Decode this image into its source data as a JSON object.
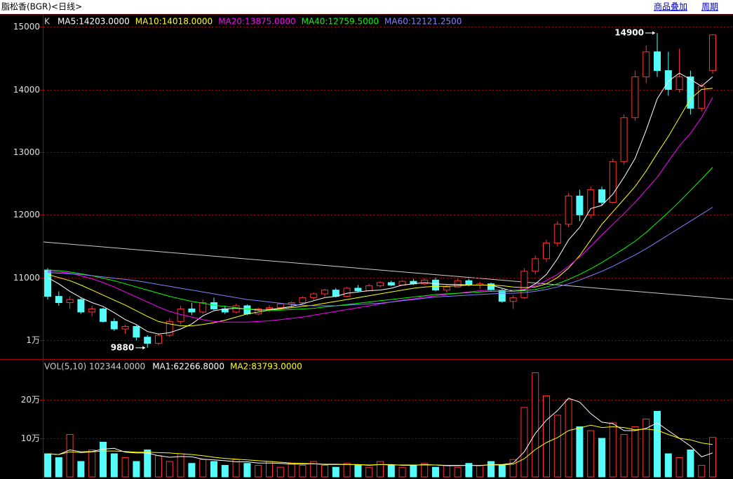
{
  "chart_data": {
    "type": "candlestick",
    "title": "脂松香(BGR)<日线>",
    "buttons": [
      "商品叠加",
      "周期"
    ],
    "price_label": "K",
    "up_color": "#ff3232",
    "down_color": "#54fcfc",
    "ylim": [
      9700,
      15180
    ],
    "yticks": [
      {
        "value": 10000,
        "label": "1万"
      },
      11000,
      12000,
      13000,
      14000,
      15000
    ],
    "grid": true,
    "ohlc": [
      [
        11120,
        11150,
        10650,
        10700
      ],
      [
        10700,
        10780,
        10550,
        10600
      ],
      [
        10600,
        10700,
        10500,
        10650
      ],
      [
        10650,
        10680,
        10420,
        10450
      ],
      [
        10450,
        10550,
        10380,
        10500
      ],
      [
        10500,
        10520,
        10280,
        10300
      ],
      [
        10300,
        10350,
        10150,
        10180
      ],
      [
        10180,
        10250,
        10100,
        10220
      ],
      [
        10220,
        10240,
        10000,
        10050
      ],
      [
        10050,
        10080,
        9880,
        9950
      ],
      [
        9950,
        10100,
        9920,
        10080
      ],
      [
        10080,
        10350,
        10050,
        10300
      ],
      [
        10300,
        10550,
        10250,
        10500
      ],
      [
        10500,
        10600,
        10400,
        10450
      ],
      [
        10450,
        10650,
        10420,
        10600
      ],
      [
        10600,
        10680,
        10480,
        10500
      ],
      [
        10500,
        10550,
        10420,
        10450
      ],
      [
        10450,
        10580,
        10430,
        10550
      ],
      [
        10550,
        10570,
        10400,
        10420
      ],
      [
        10420,
        10520,
        10400,
        10500
      ],
      [
        10500,
        10560,
        10450,
        10520
      ],
      [
        10520,
        10600,
        10480,
        10580
      ],
      [
        10580,
        10620,
        10520,
        10600
      ],
      [
        10600,
        10700,
        10580,
        10680
      ],
      [
        10680,
        10760,
        10640,
        10740
      ],
      [
        10740,
        10820,
        10700,
        10800
      ],
      [
        10800,
        10830,
        10680,
        10700
      ],
      [
        10700,
        10850,
        10690,
        10830
      ],
      [
        10830,
        10880,
        10760,
        10790
      ],
      [
        10790,
        10900,
        10780,
        10870
      ],
      [
        10870,
        10940,
        10840,
        10920
      ],
      [
        10920,
        10950,
        10860,
        10880
      ],
      [
        10880,
        10960,
        10870,
        10940
      ],
      [
        10940,
        10980,
        10880,
        10900
      ],
      [
        10900,
        10990,
        10880,
        10960
      ],
      [
        10960,
        11000,
        10780,
        10800
      ],
      [
        10800,
        10880,
        10760,
        10850
      ],
      [
        10850,
        10980,
        10840,
        10950
      ],
      [
        10950,
        10980,
        10860,
        10880
      ],
      [
        10880,
        10930,
        10820,
        10900
      ],
      [
        10900,
        10920,
        10780,
        10800
      ],
      [
        10800,
        10820,
        10600,
        10620
      ],
      [
        10620,
        10720,
        10500,
        10680
      ],
      [
        10680,
        11150,
        10660,
        11100
      ],
      [
        11100,
        11350,
        11050,
        11300
      ],
      [
        11300,
        11600,
        11250,
        11550
      ],
      [
        11550,
        11900,
        11500,
        11850
      ],
      [
        11850,
        12350,
        11800,
        12300
      ],
      [
        12300,
        12400,
        11900,
        12000
      ],
      [
        12000,
        12450,
        11950,
        12400
      ],
      [
        12400,
        12450,
        12150,
        12200
      ],
      [
        12200,
        12900,
        12180,
        12850
      ],
      [
        12850,
        13600,
        12800,
        13550
      ],
      [
        13550,
        14300,
        13500,
        14200
      ],
      [
        14200,
        14700,
        14100,
        14600
      ],
      [
        14600,
        14900,
        14200,
        14300
      ],
      [
        14300,
        14600,
        13900,
        14000
      ],
      [
        14000,
        14650,
        13950,
        14200
      ],
      [
        14200,
        14300,
        13600,
        13700
      ],
      [
        13700,
        14100,
        13650,
        14050
      ],
      [
        14300,
        14880,
        14250,
        14870
      ]
    ],
    "series": [
      {
        "name": "MA5:14203.0000",
        "color": "#ffffff",
        "values": [
          11000,
          10900,
          10780,
          10680,
          10600,
          10540,
          10440,
          10330,
          10250,
          10140,
          10100,
          10120,
          10180,
          10260,
          10390,
          10470,
          10500,
          10510,
          10500,
          10480,
          10490,
          10510,
          10540,
          10580,
          10630,
          10680,
          10700,
          10750,
          10770,
          10790,
          10800,
          10830,
          10880,
          10900,
          10920,
          10900,
          10890,
          10890,
          10880,
          10880,
          10880,
          10830,
          10780,
          10800,
          10900,
          11050,
          11300,
          11600,
          11800,
          12100,
          12150,
          12330,
          12600,
          12900,
          13350,
          13850,
          14130,
          14260,
          14160,
          14050,
          14203
        ]
      },
      {
        "name": "MA10:14018.0000",
        "color": "#ffff00",
        "values": [
          11050,
          11000,
          10950,
          10880,
          10800,
          10720,
          10640,
          10560,
          10470,
          10380,
          10300,
          10260,
          10230,
          10230,
          10250,
          10280,
          10320,
          10370,
          10420,
          10450,
          10480,
          10500,
          10520,
          10540,
          10560,
          10590,
          10620,
          10650,
          10680,
          10710,
          10740,
          10770,
          10800,
          10830,
          10850,
          10860,
          10860,
          10870,
          10880,
          10880,
          10880,
          10870,
          10850,
          10840,
          10850,
          10900,
          11000,
          11150,
          11350,
          11600,
          11850,
          12050,
          12250,
          12450,
          12700,
          12980,
          13250,
          13550,
          13850,
          14000,
          14018
        ]
      },
      {
        "name": "MA20:13875.0000",
        "color": "#ff00ff",
        "values": [
          11100,
          11090,
          11070,
          11030,
          10980,
          10920,
          10850,
          10770,
          10690,
          10610,
          10530,
          10460,
          10410,
          10370,
          10330,
          10300,
          10290,
          10290,
          10290,
          10300,
          10310,
          10330,
          10350,
          10370,
          10400,
          10430,
          10460,
          10490,
          10520,
          10550,
          10580,
          10610,
          10640,
          10660,
          10690,
          10710,
          10730,
          10750,
          10770,
          10790,
          10800,
          10800,
          10800,
          10810,
          10870,
          10950,
          11050,
          11180,
          11330,
          11500,
          11680,
          11850,
          12020,
          12200,
          12400,
          12600,
          12850,
          13100,
          13300,
          13550,
          13875
        ]
      },
      {
        "name": "MA40:12759.5000",
        "color": "#00ff00",
        "values": [
          11120,
          11110,
          11090,
          11060,
          11030,
          10990,
          10950,
          10900,
          10850,
          10800,
          10750,
          10700,
          10660,
          10620,
          10590,
          10560,
          10540,
          10520,
          10500,
          10490,
          10480,
          10480,
          10490,
          10500,
          10510,
          10530,
          10550,
          10570,
          10590,
          10610,
          10630,
          10650,
          10670,
          10690,
          10710,
          10730,
          10740,
          10750,
          10760,
          10770,
          10780,
          10780,
          10780,
          10790,
          10810,
          10850,
          10900,
          10970,
          11050,
          11140,
          11240,
          11350,
          11460,
          11580,
          11720,
          11880,
          12040,
          12210,
          12390,
          12570,
          12759
        ]
      },
      {
        "name": "MA60:12121.2500",
        "color": "#8080ff",
        "values": [
          11080,
          11070,
          11060,
          11050,
          11030,
          11010,
          10990,
          10970,
          10950,
          10920,
          10890,
          10860,
          10830,
          10800,
          10770,
          10740,
          10710,
          10680,
          10650,
          10630,
          10610,
          10590,
          10570,
          10560,
          10550,
          10550,
          10550,
          10560,
          10570,
          10580,
          10590,
          10610,
          10630,
          10650,
          10670,
          10690,
          10700,
          10710,
          10720,
          10730,
          10740,
          10750,
          10750,
          10760,
          10780,
          10810,
          10850,
          10900,
          10960,
          11030,
          11100,
          11180,
          11270,
          11360,
          11460,
          11570,
          11680,
          11790,
          11900,
          12010,
          12121
        ]
      }
    ],
    "annotations": [
      {
        "value": 14900
      },
      {
        "value": 9880
      }
    ],
    "volume": {
      "label": "VOL(5,10) 102344.0000",
      "ylim": [
        0,
        300000
      ],
      "yticks": [
        {
          "value": 100000,
          "label": "10万"
        },
        {
          "value": 200000,
          "label": "20万"
        }
      ],
      "values": [
        60000,
        50000,
        110000,
        40000,
        70000,
        90000,
        60000,
        50000,
        40000,
        70000,
        55000,
        40000,
        60000,
        35000,
        45000,
        40000,
        30000,
        45000,
        35000,
        30000,
        40000,
        25000,
        35000,
        30000,
        40000,
        30000,
        25000,
        35000,
        30000,
        25000,
        40000,
        30000,
        25000,
        30000,
        35000,
        25000,
        30000,
        25000,
        35000,
        30000,
        40000,
        30000,
        45000,
        180000,
        270000,
        210000,
        160000,
        200000,
        130000,
        120000,
        100000,
        140000,
        110000,
        130000,
        150000,
        170000,
        60000,
        50000,
        70000,
        30000,
        102344
      ],
      "series": [
        {
          "name": "MA1:62266.8000",
          "color": "#ffffff",
          "values": [
            60000,
            58000,
            70000,
            65000,
            66000,
            72000,
            74000,
            64000,
            62000,
            62000,
            55000,
            51000,
            53000,
            52000,
            46000,
            44000,
            42000,
            39000,
            39000,
            36000,
            36000,
            35000,
            33000,
            33000,
            34000,
            32000,
            32000,
            32000,
            32000,
            30000,
            32000,
            32000,
            30000,
            30000,
            32000,
            31000,
            29000,
            29000,
            30000,
            29000,
            32000,
            32000,
            36000,
            65000,
            113000,
            147000,
            172000,
            204000,
            194000,
            164000,
            142000,
            138000,
            120000,
            120000,
            126000,
            140000,
            120000,
            100000,
            80000,
            52000,
            62266.8
          ]
        },
        {
          "name": "MA2:83793.0000",
          "color": "#ffff00",
          "values": [
            60000,
            58000,
            65000,
            63000,
            65000,
            67000,
            67000,
            66000,
            64000,
            64000,
            63000,
            62000,
            60000,
            58000,
            55000,
            51000,
            48000,
            46000,
            44000,
            42000,
            40000,
            38000,
            36000,
            35000,
            34000,
            33000,
            33000,
            32000,
            32000,
            31000,
            32000,
            31000,
            31000,
            31000,
            31000,
            31000,
            30000,
            30000,
            30000,
            30000,
            31000,
            31000,
            33000,
            47000,
            71000,
            89000,
            102000,
            120000,
            127000,
            134000,
            128000,
            130000,
            128000,
            122000,
            124000,
            121000,
            110000,
            100000,
            96000,
            88000,
            83793
          ]
        }
      ]
    }
  }
}
